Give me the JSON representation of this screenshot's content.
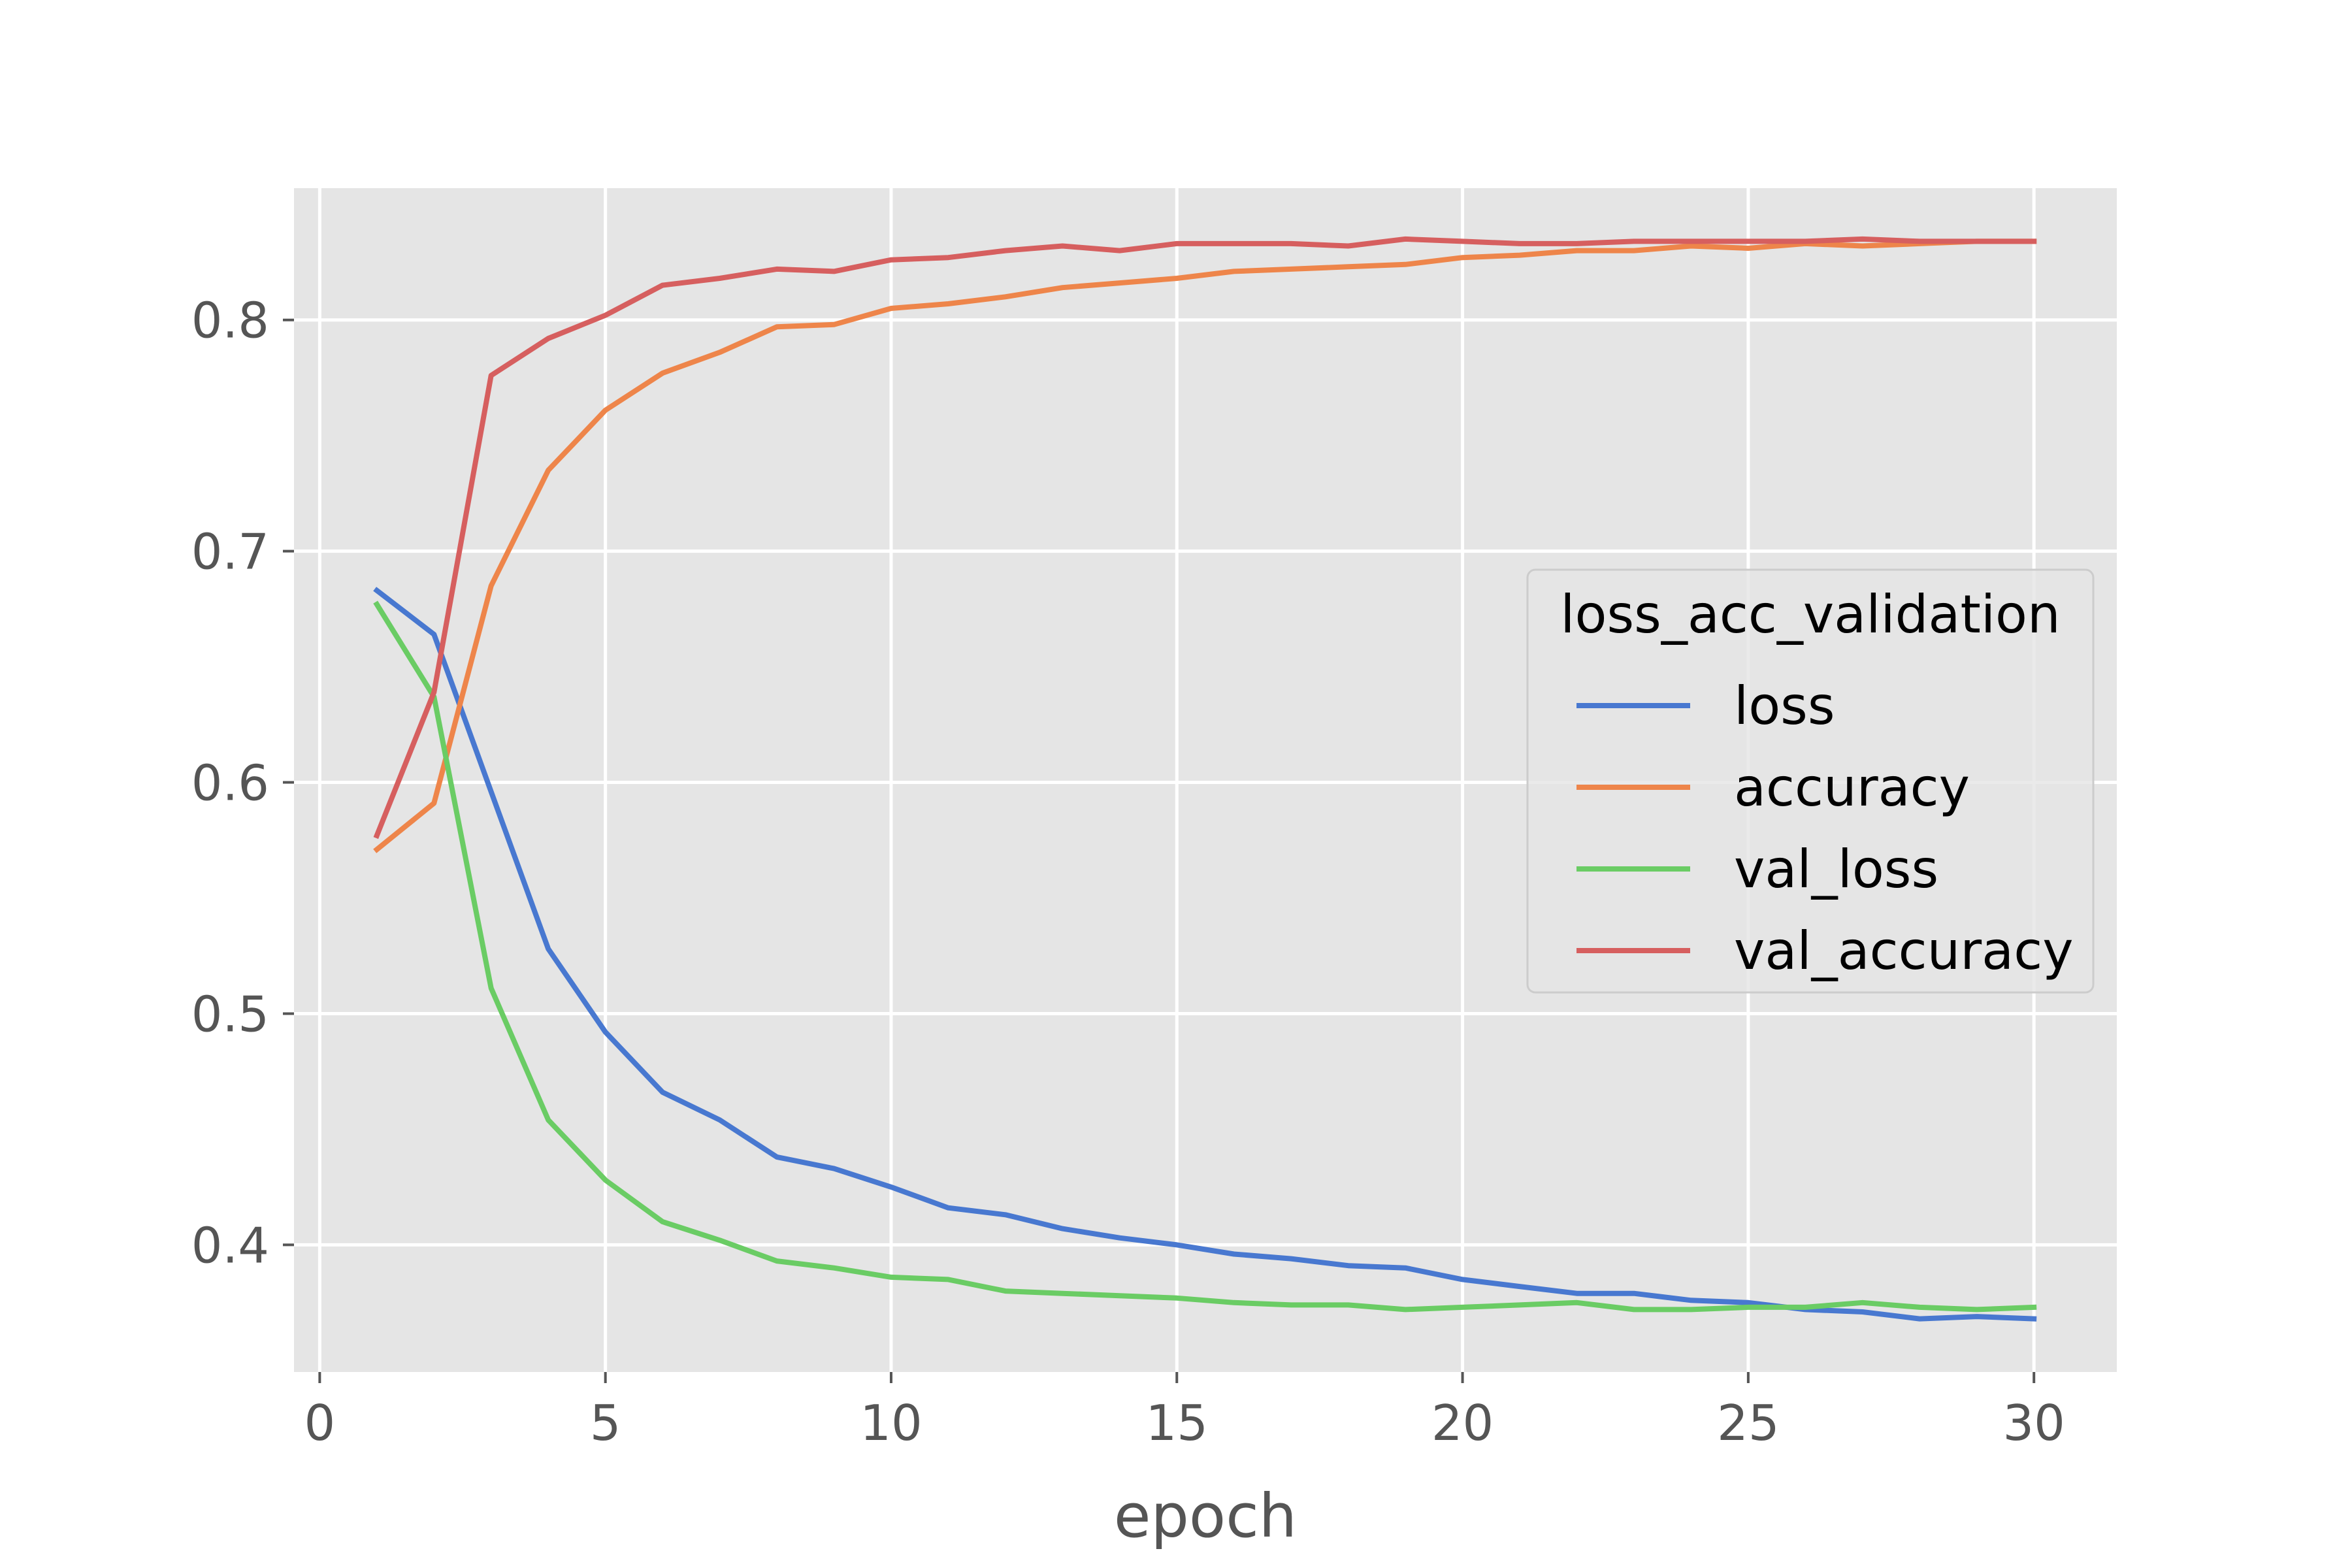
{
  "chart_data": {
    "type": "line",
    "xlabel": "epoch",
    "ylabel": "",
    "xlim": [
      -0.45,
      31.45
    ],
    "ylim": [
      0.345,
      0.857
    ],
    "xticks": [
      0,
      5,
      10,
      15,
      20,
      25,
      30
    ],
    "yticks": [
      0.4,
      0.5,
      0.6,
      0.7,
      0.8
    ],
    "grid": true,
    "background": "#e5e5e5",
    "legend": {
      "title": "loss_acc_validation",
      "placement": "center-right"
    },
    "x": [
      1,
      2,
      3,
      4,
      5,
      6,
      7,
      8,
      9,
      10,
      11,
      12,
      13,
      14,
      15,
      16,
      17,
      18,
      19,
      20,
      21,
      22,
      23,
      24,
      25,
      26,
      27,
      28,
      29,
      30
    ],
    "series": [
      {
        "name": "loss",
        "color": "#4878d0",
        "values": [
          0.683,
          0.664,
          0.596,
          0.528,
          0.492,
          0.466,
          0.454,
          0.438,
          0.433,
          0.425,
          0.416,
          0.413,
          0.407,
          0.403,
          0.4,
          0.396,
          0.394,
          0.391,
          0.39,
          0.385,
          0.382,
          0.379,
          0.379,
          0.376,
          0.375,
          0.372,
          0.371,
          0.368,
          0.369,
          0.368
        ]
      },
      {
        "name": "accuracy",
        "color": "#ee854a",
        "values": [
          0.571,
          0.591,
          0.685,
          0.735,
          0.761,
          0.777,
          0.786,
          0.797,
          0.798,
          0.805,
          0.807,
          0.81,
          0.814,
          0.816,
          0.818,
          0.821,
          0.822,
          0.823,
          0.824,
          0.827,
          0.828,
          0.83,
          0.83,
          0.832,
          0.831,
          0.833,
          0.832,
          0.833,
          0.834,
          0.834
        ]
      },
      {
        "name": "val_loss",
        "color": "#6acc64",
        "values": [
          0.677,
          0.637,
          0.511,
          0.454,
          0.428,
          0.41,
          0.402,
          0.393,
          0.39,
          0.386,
          0.385,
          0.38,
          0.379,
          0.378,
          0.377,
          0.375,
          0.374,
          0.374,
          0.372,
          0.373,
          0.374,
          0.375,
          0.372,
          0.372,
          0.373,
          0.373,
          0.375,
          0.373,
          0.372,
          0.373
        ]
      },
      {
        "name": "val_accuracy",
        "color": "#d65f5f",
        "values": [
          0.577,
          0.639,
          0.776,
          0.792,
          0.802,
          0.815,
          0.818,
          0.822,
          0.821,
          0.826,
          0.827,
          0.83,
          0.832,
          0.83,
          0.833,
          0.833,
          0.833,
          0.832,
          0.835,
          0.834,
          0.833,
          0.833,
          0.834,
          0.834,
          0.834,
          0.834,
          0.835,
          0.834,
          0.834,
          0.834
        ]
      }
    ]
  }
}
